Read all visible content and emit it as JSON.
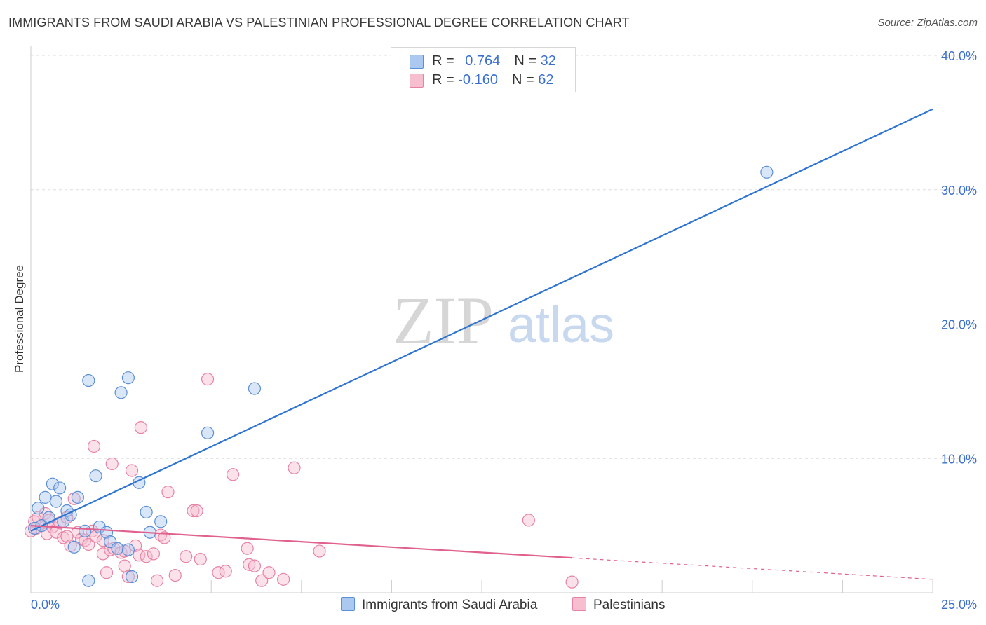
{
  "title": "IMMIGRANTS FROM SAUDI ARABIA VS PALESTINIAN PROFESSIONAL DEGREE CORRELATION CHART",
  "source": "Source: ZipAtlas.com",
  "watermark": {
    "zip": "ZIP",
    "atlas": "atlas"
  },
  "legend": {
    "rows": [
      {
        "r_label": "R = ",
        "r_value": "0.764",
        "n_label": "N = ",
        "n_value": "32"
      },
      {
        "r_label": "R = ",
        "r_value": "-0.160",
        "n_label": "N = ",
        "n_value": "62"
      }
    ]
  },
  "bottom_legend": [
    "Immigrants from Saudi Arabia",
    "Palestinians"
  ],
  "colors": {
    "blue_fill": "#aac8f0",
    "blue_stroke": "#5b8fd6",
    "blue_line": "#2e74d0",
    "pink_fill": "#f7bed0",
    "pink_stroke": "#e882a5",
    "pink_line": "#e0608e",
    "tick_text": "#3a6fd0",
    "grid": "#dddddd"
  },
  "chart_data": {
    "type": "scatter",
    "title": "IMMIGRANTS FROM SAUDI ARABIA VS PALESTINIAN PROFESSIONAL DEGREE CORRELATION CHART",
    "xlabel": "",
    "ylabel": "Professional Degree",
    "xlim": [
      0,
      25
    ],
    "ylim": [
      0,
      40
    ],
    "x_tick_labels": [
      "0.0%",
      "25.0%"
    ],
    "y_ticks": [
      10,
      20,
      30,
      40
    ],
    "y_tick_labels": [
      "10.0%",
      "20.0%",
      "30.0%",
      "40.0%"
    ],
    "grid": true,
    "series": [
      {
        "name": "Immigrants from Saudi Arabia",
        "R": 0.764,
        "N": 32,
        "points": [
          [
            0.1,
            4.8
          ],
          [
            0.2,
            6.3
          ],
          [
            0.3,
            5.0
          ],
          [
            0.4,
            7.1
          ],
          [
            0.5,
            5.6
          ],
          [
            0.6,
            8.1
          ],
          [
            0.7,
            6.8
          ],
          [
            0.8,
            7.8
          ],
          [
            0.9,
            5.3
          ],
          [
            1.0,
            6.1
          ],
          [
            1.1,
            5.8
          ],
          [
            1.2,
            3.4
          ],
          [
            1.3,
            7.1
          ],
          [
            1.5,
            4.6
          ],
          [
            1.6,
            15.8
          ],
          [
            1.6,
            0.9
          ],
          [
            1.8,
            8.7
          ],
          [
            1.9,
            4.9
          ],
          [
            2.1,
            4.5
          ],
          [
            2.2,
            3.8
          ],
          [
            2.4,
            3.3
          ],
          [
            2.5,
            14.9
          ],
          [
            2.7,
            3.2
          ],
          [
            2.7,
            16.0
          ],
          [
            2.8,
            1.2
          ],
          [
            3.0,
            8.2
          ],
          [
            3.2,
            6.0
          ],
          [
            3.3,
            4.5
          ],
          [
            3.6,
            5.3
          ],
          [
            4.9,
            11.9
          ],
          [
            6.2,
            15.2
          ],
          [
            20.4,
            31.3
          ]
        ],
        "trend": {
          "x": [
            0.0,
            25.0
          ],
          "y": [
            4.6,
            36.0
          ]
        }
      },
      {
        "name": "Palestinians",
        "R": -0.16,
        "N": 62,
        "points": [
          [
            0.0,
            4.6
          ],
          [
            0.1,
            5.3
          ],
          [
            0.15,
            4.8
          ],
          [
            0.2,
            5.6
          ],
          [
            0.3,
            5.0
          ],
          [
            0.4,
            5.9
          ],
          [
            0.45,
            4.4
          ],
          [
            0.5,
            5.4
          ],
          [
            0.6,
            4.9
          ],
          [
            0.7,
            4.5
          ],
          [
            0.8,
            5.2
          ],
          [
            0.9,
            4.1
          ],
          [
            1.0,
            5.6
          ],
          [
            1.0,
            4.2
          ],
          [
            1.1,
            3.5
          ],
          [
            1.2,
            7.0
          ],
          [
            1.3,
            4.5
          ],
          [
            1.4,
            4.0
          ],
          [
            1.5,
            3.9
          ],
          [
            1.6,
            3.6
          ],
          [
            1.7,
            4.6
          ],
          [
            1.75,
            10.9
          ],
          [
            1.8,
            4.2
          ],
          [
            2.0,
            3.9
          ],
          [
            2.0,
            2.9
          ],
          [
            2.1,
            1.5
          ],
          [
            2.2,
            3.2
          ],
          [
            2.25,
            9.6
          ],
          [
            2.3,
            3.3
          ],
          [
            2.5,
            3.0
          ],
          [
            2.6,
            3.1
          ],
          [
            2.6,
            2.0
          ],
          [
            2.7,
            1.2
          ],
          [
            2.8,
            9.1
          ],
          [
            2.9,
            3.5
          ],
          [
            3.0,
            2.8
          ],
          [
            3.05,
            12.3
          ],
          [
            3.2,
            2.7
          ],
          [
            3.4,
            2.9
          ],
          [
            3.5,
            0.9
          ],
          [
            3.6,
            4.3
          ],
          [
            3.7,
            4.1
          ],
          [
            3.8,
            7.5
          ],
          [
            4.0,
            1.3
          ],
          [
            4.3,
            2.7
          ],
          [
            4.5,
            6.1
          ],
          [
            4.6,
            6.1
          ],
          [
            4.7,
            2.5
          ],
          [
            4.9,
            15.9
          ],
          [
            5.2,
            1.5
          ],
          [
            5.4,
            1.6
          ],
          [
            5.6,
            8.8
          ],
          [
            6.0,
            3.3
          ],
          [
            6.05,
            2.1
          ],
          [
            6.2,
            2.0
          ],
          [
            6.4,
            0.9
          ],
          [
            6.6,
            1.5
          ],
          [
            7.0,
            1.0
          ],
          [
            7.3,
            9.3
          ],
          [
            8.0,
            3.1
          ],
          [
            13.8,
            5.4
          ],
          [
            15.0,
            0.8
          ]
        ],
        "trend": {
          "x": [
            0.0,
            15.0
          ],
          "y": [
            5.0,
            2.6
          ]
        },
        "trend_dashed": {
          "x": [
            15.0,
            25.0
          ],
          "y": [
            2.6,
            1.0
          ]
        }
      }
    ]
  }
}
